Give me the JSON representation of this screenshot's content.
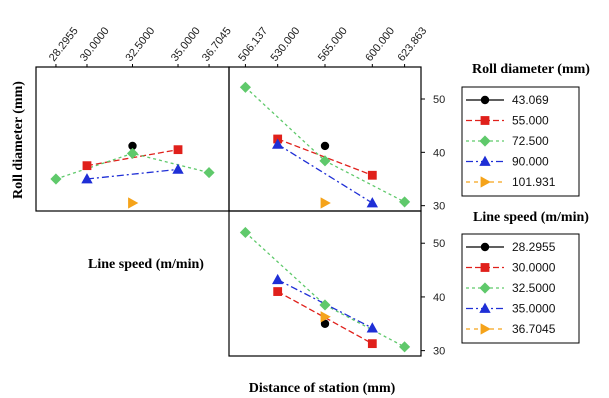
{
  "chart_data": {
    "type": "line",
    "title": "",
    "axes": {
      "line_speed_label": "Line speed (m/min)",
      "roll_diameter_label": "Roll diameter (mm)",
      "distance_label": "Distance of station (mm)",
      "line_speed_ticks": [
        "28.2955",
        "30.0000",
        "32.5000",
        "35.0000",
        "36.7045"
      ],
      "line_speed_range": [
        27.2,
        37.8
      ],
      "distance_ticks": [
        "506.137",
        "530.000",
        "565.000",
        "600.000",
        "623.863"
      ],
      "distance_range": [
        494,
        636
      ],
      "y_range": [
        29,
        56
      ],
      "y_ticks": [
        "50",
        "40",
        "30"
      ]
    },
    "legend_roll": {
      "title": "Roll diameter (mm)",
      "series": [
        {
          "name": "43.069",
          "color": "#000000",
          "marker": "circle"
        },
        {
          "name": "55.000",
          "color": "#e0201b",
          "marker": "square"
        },
        {
          "name": "72.500",
          "color": "#5fc96b",
          "marker": "diamond"
        },
        {
          "name": "90.000",
          "color": "#1f2fd6",
          "marker": "triangle-up"
        },
        {
          "name": "101.931",
          "color": "#f5a31a",
          "marker": "triangle-right"
        }
      ]
    },
    "legend_speed": {
      "title": "Line speed (m/min)",
      "series": [
        {
          "name": "28.2955",
          "color": "#000000",
          "marker": "circle"
        },
        {
          "name": "30.0000",
          "color": "#e0201b",
          "marker": "square"
        },
        {
          "name": "32.5000",
          "color": "#5fc96b",
          "marker": "diamond"
        },
        {
          "name": "35.0000",
          "color": "#1f2fd6",
          "marker": "triangle-up"
        },
        {
          "name": "36.7045",
          "color": "#f5a31a",
          "marker": "triangle-right"
        }
      ]
    },
    "panels": [
      {
        "id": "roll-vs-line-speed",
        "x_axis": "line_speed",
        "group_by": "legend_roll",
        "series": [
          {
            "name": "43.069",
            "points": [
              [
                32.5,
                41.2
              ]
            ]
          },
          {
            "name": "55.000",
            "points": [
              [
                30.0,
                37.5
              ],
              [
                35.0,
                40.5
              ]
            ]
          },
          {
            "name": "72.500",
            "points": [
              [
                28.2955,
                35.0
              ],
              [
                32.5,
                39.8
              ],
              [
                36.7045,
                36.2
              ]
            ]
          },
          {
            "name": "90.000",
            "points": [
              [
                30.0,
                35.0
              ],
              [
                35.0,
                36.8
              ]
            ]
          },
          {
            "name": "101.931",
            "points": [
              [
                32.5,
                30.5
              ]
            ]
          }
        ]
      },
      {
        "id": "roll-vs-distance",
        "x_axis": "distance",
        "group_by": "legend_roll",
        "series": [
          {
            "name": "43.069",
            "points": [
              [
                565.0,
                41.2
              ]
            ]
          },
          {
            "name": "55.000",
            "points": [
              [
                530.0,
                42.5
              ],
              [
                600.0,
                35.7
              ]
            ]
          },
          {
            "name": "72.500",
            "points": [
              [
                506.137,
                52.2
              ],
              [
                565.0,
                38.4
              ],
              [
                623.863,
                30.7
              ]
            ]
          },
          {
            "name": "90.000",
            "points": [
              [
                530.0,
                41.5
              ],
              [
                600.0,
                30.5
              ]
            ]
          },
          {
            "name": "101.931",
            "points": [
              [
                565.0,
                30.5
              ]
            ]
          }
        ]
      },
      {
        "id": "speed-vs-distance",
        "x_axis": "distance",
        "group_by": "legend_speed",
        "series": [
          {
            "name": "28.2955",
            "points": [
              [
                565.0,
                35.0
              ]
            ]
          },
          {
            "name": "30.0000",
            "points": [
              [
                530.0,
                41.0
              ],
              [
                600.0,
                31.3
              ]
            ]
          },
          {
            "name": "32.5000",
            "points": [
              [
                506.137,
                52.0
              ],
              [
                565.0,
                38.5
              ],
              [
                623.863,
                30.7
              ]
            ]
          },
          {
            "name": "35.0000",
            "points": [
              [
                530.0,
                43.2
              ],
              [
                600.0,
                34.2
              ]
            ]
          },
          {
            "name": "36.7045",
            "points": [
              [
                565.0,
                36.3
              ]
            ]
          }
        ]
      }
    ]
  }
}
